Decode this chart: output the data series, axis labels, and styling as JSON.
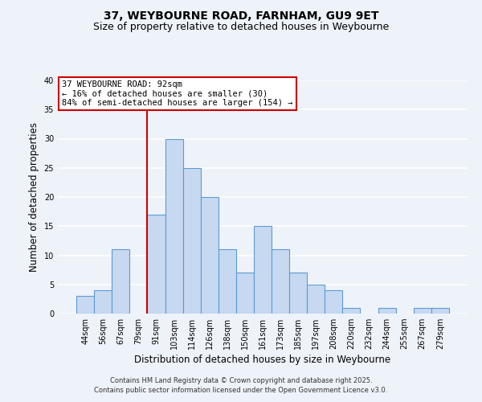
{
  "title_line1": "37, WEYBOURNE ROAD, FARNHAM, GU9 9ET",
  "title_line2": "Size of property relative to detached houses in Weybourne",
  "xlabel": "Distribution of detached houses by size in Weybourne",
  "ylabel": "Number of detached properties",
  "bin_labels": [
    "44sqm",
    "56sqm",
    "67sqm",
    "79sqm",
    "91sqm",
    "103sqm",
    "114sqm",
    "126sqm",
    "138sqm",
    "150sqm",
    "161sqm",
    "173sqm",
    "185sqm",
    "197sqm",
    "208sqm",
    "220sqm",
    "232sqm",
    "244sqm",
    "255sqm",
    "267sqm",
    "279sqm"
  ],
  "bar_heights": [
    3,
    4,
    11,
    0,
    17,
    30,
    25,
    20,
    11,
    7,
    15,
    11,
    7,
    5,
    4,
    1,
    0,
    1,
    0,
    1,
    1
  ],
  "bar_color": "#c6d9f0",
  "bar_edge_color": "#5b9bd5",
  "vline_x_index": 4,
  "vline_color": "#cc0000",
  "ylim": [
    0,
    40
  ],
  "yticks": [
    0,
    5,
    10,
    15,
    20,
    25,
    30,
    35,
    40
  ],
  "annotation_title": "37 WEYBOURNE ROAD: 92sqm",
  "annotation_line1": "← 16% of detached houses are smaller (30)",
  "annotation_line2": "84% of semi-detached houses are larger (154) →",
  "annotation_box_color": "#ffffff",
  "annotation_box_edge": "#cc0000",
  "footer_line1": "Contains HM Land Registry data © Crown copyright and database right 2025.",
  "footer_line2": "Contains public sector information licensed under the Open Government Licence v3.0.",
  "background_color": "#eef2f9",
  "grid_color": "#ffffff",
  "title_fontsize": 10,
  "subtitle_fontsize": 9,
  "label_fontsize": 8.5,
  "tick_fontsize": 7,
  "annotation_fontsize": 7.5,
  "footer_fontsize": 6
}
